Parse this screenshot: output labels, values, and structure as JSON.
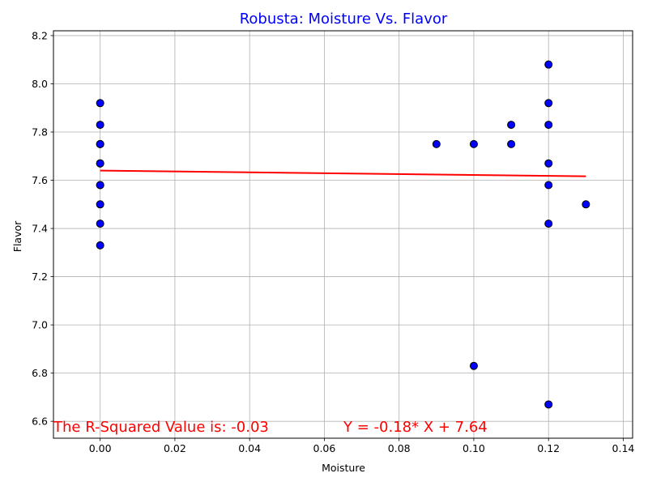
{
  "chart_data": {
    "type": "scatter",
    "title": "Robusta: Moisture Vs. Flavor",
    "title_color": "#0000ff",
    "xlabel": "Moisture",
    "ylabel": "Flavor",
    "xlim": [
      -0.0125,
      0.1425
    ],
    "ylim": [
      6.53,
      8.22
    ],
    "xticks": [
      0.0,
      0.02,
      0.04,
      0.06,
      0.08,
      0.1,
      0.12,
      0.14
    ],
    "xtick_labels": [
      "0.00",
      "0.02",
      "0.04",
      "0.06",
      "0.08",
      "0.10",
      "0.12",
      "0.14"
    ],
    "yticks": [
      6.6,
      6.8,
      7.0,
      7.2,
      7.4,
      7.6,
      7.8,
      8.0,
      8.2
    ],
    "ytick_labels": [
      "6.6",
      "6.8",
      "7.0",
      "7.2",
      "7.4",
      "7.6",
      "7.8",
      "8.0",
      "8.2"
    ],
    "grid": true,
    "points": [
      {
        "x": 0.0,
        "y": 7.92
      },
      {
        "x": 0.0,
        "y": 7.83
      },
      {
        "x": 0.0,
        "y": 7.75
      },
      {
        "x": 0.0,
        "y": 7.75
      },
      {
        "x": 0.0,
        "y": 7.67
      },
      {
        "x": 0.0,
        "y": 7.67
      },
      {
        "x": 0.0,
        "y": 7.58
      },
      {
        "x": 0.0,
        "y": 7.58
      },
      {
        "x": 0.0,
        "y": 7.5
      },
      {
        "x": 0.0,
        "y": 7.42
      },
      {
        "x": 0.0,
        "y": 7.33
      },
      {
        "x": 0.09,
        "y": 7.75
      },
      {
        "x": 0.1,
        "y": 7.75
      },
      {
        "x": 0.1,
        "y": 6.83
      },
      {
        "x": 0.11,
        "y": 7.83
      },
      {
        "x": 0.11,
        "y": 7.75
      },
      {
        "x": 0.12,
        "y": 8.08
      },
      {
        "x": 0.12,
        "y": 7.92
      },
      {
        "x": 0.12,
        "y": 7.83
      },
      {
        "x": 0.12,
        "y": 7.67
      },
      {
        "x": 0.12,
        "y": 7.58
      },
      {
        "x": 0.12,
        "y": 7.42
      },
      {
        "x": 0.12,
        "y": 6.67
      },
      {
        "x": 0.13,
        "y": 7.5
      }
    ],
    "point_color": "#0000ff",
    "point_edge_color": "#000000",
    "regression": {
      "slope": -0.18,
      "intercept": 7.64,
      "x_range": [
        0.0,
        0.13
      ],
      "color": "#ff0000"
    },
    "annotations": {
      "r_squared": "The R-Squared Value is: -0.03",
      "equation": "Y = -0.18* X + 7.64",
      "color": "#ff0000"
    }
  }
}
